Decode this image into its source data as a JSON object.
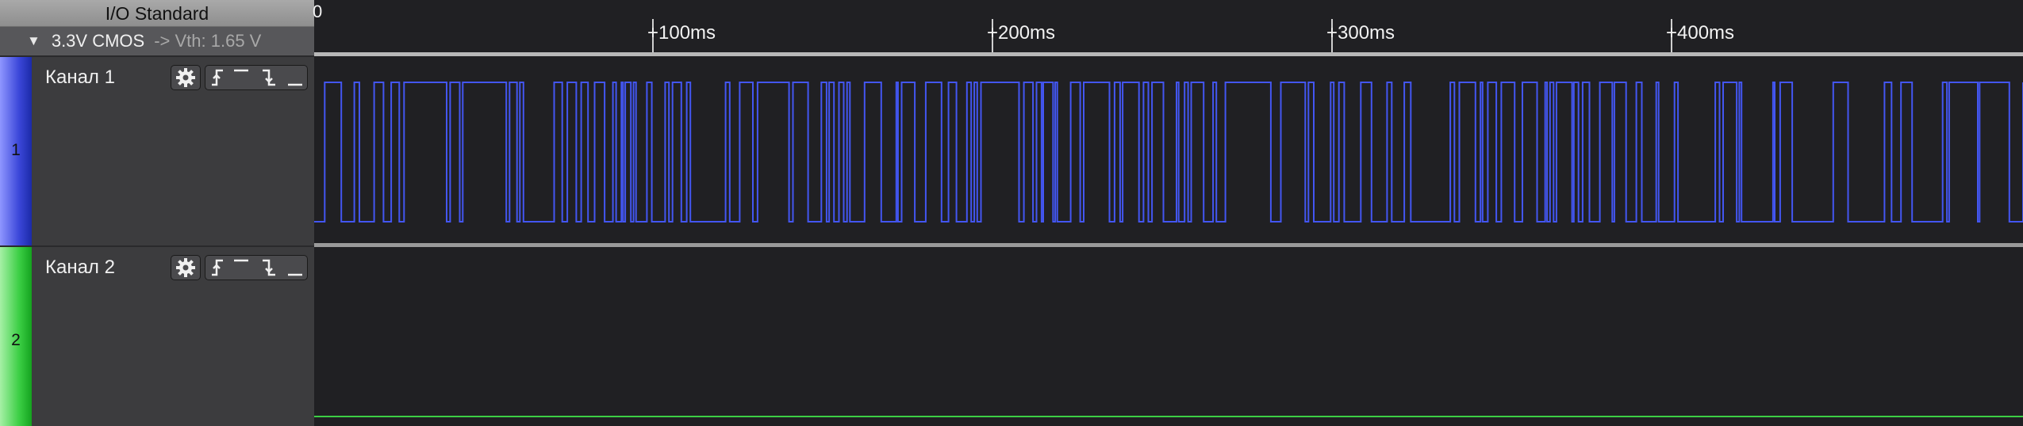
{
  "io_standard": {
    "title": "I/O Standard",
    "value": "3.3V CMOS",
    "threshold": "-> Vth: 1.65 V"
  },
  "ruler": {
    "start_label": "0",
    "ticks": [
      "+100ms",
      "+200ms",
      "+300ms",
      "+400ms"
    ]
  },
  "channels": [
    {
      "number": "1",
      "name": "Канал 1",
      "color": "#3b47d9",
      "state": "toggling",
      "icons": [
        "gear-icon",
        "rising-edge-icon",
        "high-level-icon",
        "falling-edge-icon",
        "low-level-icon"
      ]
    },
    {
      "number": "2",
      "name": "Канал 2",
      "color": "#3ccf45",
      "state": "low",
      "icons": [
        "gear-icon",
        "rising-edge-icon",
        "high-level-icon",
        "falling-edge-icon",
        "low-level-icon"
      ]
    }
  ]
}
